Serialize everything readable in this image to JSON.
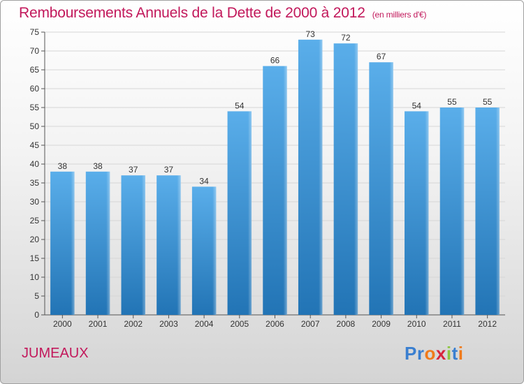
{
  "title": "Remboursements Annuels de la Dette de 2000 à 2012",
  "unit": "(en milliers d'€)",
  "commune": "JUMEAUX",
  "logo": {
    "letters": [
      "P",
      "r",
      "o",
      "x",
      "i",
      "t",
      "i"
    ],
    "colors": [
      "#3a7fd0",
      "#3a7fd0",
      "#f07a1a",
      "#d7263d",
      "#8dc63f",
      "#3a7fd0",
      "#f07a1a"
    ]
  },
  "colors": {
    "bar_top": "#5aaeea",
    "bar_bottom": "#2274b5",
    "text": "#333333",
    "title": "#c2185b"
  },
  "chart_data": {
    "type": "bar",
    "categories": [
      "2000",
      "2001",
      "2002",
      "2003",
      "2004",
      "2005",
      "2006",
      "2007",
      "2008",
      "2009",
      "2010",
      "2011",
      "2012"
    ],
    "values": [
      38,
      38,
      37,
      37,
      34,
      54,
      66,
      73,
      72,
      67,
      54,
      55,
      55
    ],
    "xlabel": "",
    "ylabel": "",
    "ylim": [
      0,
      75
    ],
    "yticks": [
      0,
      5,
      10,
      15,
      20,
      25,
      30,
      35,
      40,
      45,
      50,
      55,
      60,
      65,
      70,
      75
    ],
    "grid": true,
    "data_labels": true
  }
}
